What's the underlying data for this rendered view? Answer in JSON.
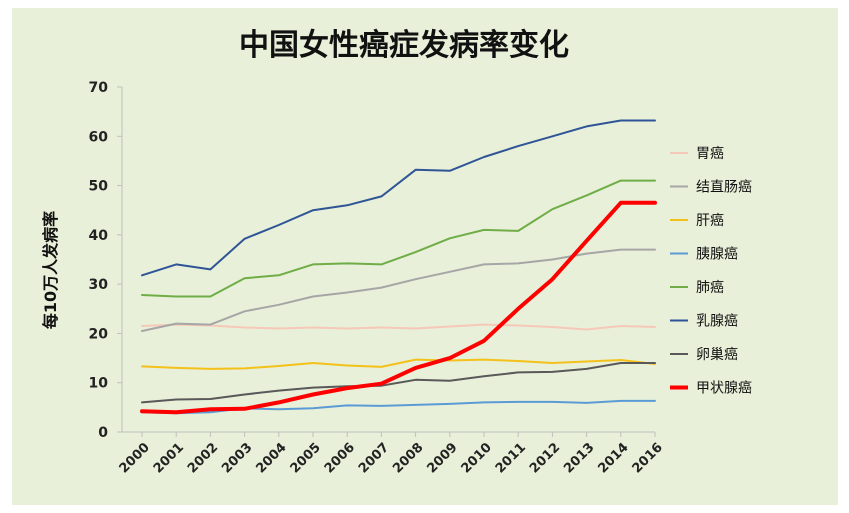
{
  "chart_data": {
    "type": "line",
    "title": "中国女性癌症发病率变化",
    "xlabel": "",
    "ylabel": "每10万人发病率",
    "ylim": [
      0,
      70
    ],
    "yticks": [
      0,
      10,
      20,
      30,
      40,
      50,
      60,
      70
    ],
    "categories": [
      "2000",
      "2001",
      "2002",
      "2003",
      "2004",
      "2005",
      "2006",
      "2007",
      "2008",
      "2009",
      "2010",
      "2011",
      "2012",
      "2013",
      "2014",
      "2016"
    ],
    "grid": false,
    "legend_position": "right",
    "series": [
      {
        "name": "胃癌",
        "color": "#f6c8b8",
        "width": 2,
        "values": [
          21.5,
          21.8,
          21.6,
          21.2,
          21.0,
          21.2,
          21.0,
          21.2,
          21.0,
          21.4,
          21.8,
          21.6,
          21.3,
          20.8,
          21.5,
          21.3
        ]
      },
      {
        "name": "结直肠癌",
        "color": "#a6a6a6",
        "width": 2,
        "values": [
          20.5,
          22.0,
          21.8,
          24.5,
          25.8,
          27.5,
          28.3,
          29.3,
          31.0,
          32.5,
          34.0,
          34.2,
          35.0,
          36.2,
          37.0,
          37.0
        ]
      },
      {
        "name": "肝癌",
        "color": "#f3c11a",
        "width": 2,
        "values": [
          13.3,
          13.0,
          12.8,
          12.9,
          13.4,
          14.0,
          13.5,
          13.2,
          14.7,
          14.5,
          14.7,
          14.4,
          14.0,
          14.3,
          14.6,
          13.8
        ]
      },
      {
        "name": "胰腺癌",
        "color": "#5b9bd5",
        "width": 2,
        "values": [
          4.0,
          3.8,
          4.0,
          4.8,
          4.6,
          4.8,
          5.4,
          5.3,
          5.5,
          5.7,
          6.0,
          6.1,
          6.1,
          5.9,
          6.3,
          6.3
        ]
      },
      {
        "name": "肺癌",
        "color": "#70ad47",
        "width": 2,
        "values": [
          27.8,
          27.5,
          27.5,
          31.2,
          31.8,
          34.0,
          34.2,
          34.0,
          36.5,
          39.3,
          41.0,
          40.8,
          45.2,
          48.0,
          51.0,
          51.0
        ]
      },
      {
        "name": "乳腺癌",
        "color": "#2f5597",
        "width": 2,
        "values": [
          31.8,
          34.0,
          33.0,
          39.2,
          42.0,
          45.0,
          46.0,
          47.8,
          53.2,
          53.0,
          55.8,
          58.0,
          60.0,
          62.0,
          63.2,
          63.2
        ]
      },
      {
        "name": "卵巢癌",
        "color": "#595959",
        "width": 2,
        "values": [
          6.0,
          6.6,
          6.7,
          7.6,
          8.4,
          9.0,
          9.3,
          9.4,
          10.6,
          10.4,
          11.3,
          12.1,
          12.2,
          12.8,
          14.0,
          14.0
        ]
      },
      {
        "name": "甲状腺癌",
        "color": "#ff0000",
        "width": 4,
        "values": [
          4.2,
          4.0,
          4.6,
          4.7,
          6.0,
          7.6,
          8.9,
          9.8,
          13.0,
          15.0,
          18.5,
          25.0,
          31.0,
          38.8,
          46.5,
          46.5
        ]
      }
    ]
  }
}
